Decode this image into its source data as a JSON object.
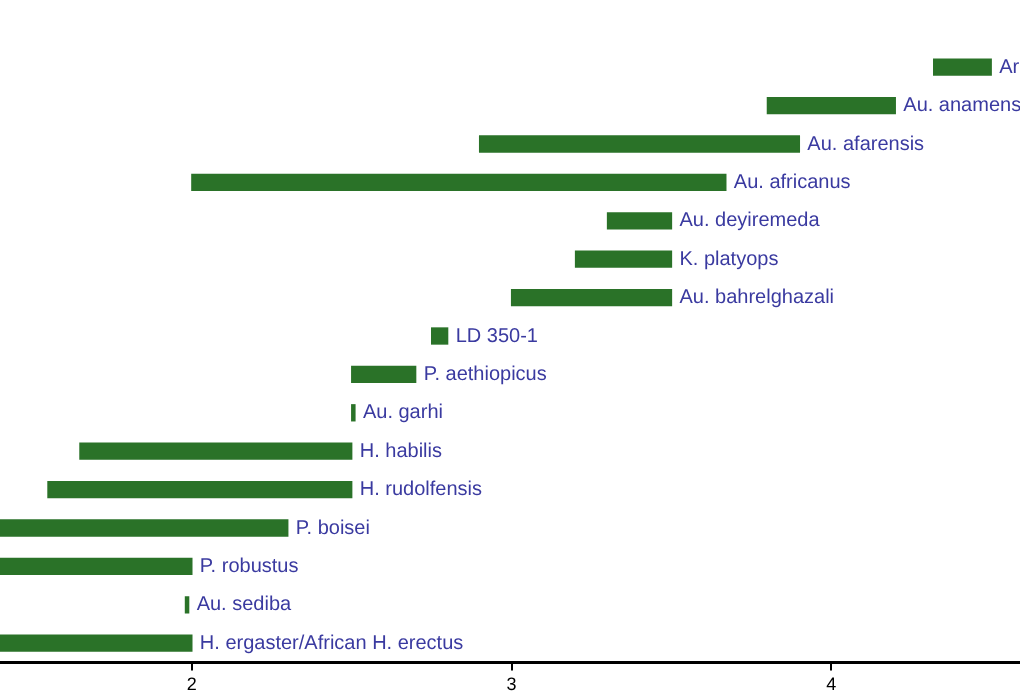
{
  "chart_data": {
    "type": "bar",
    "orientation": "horizontal",
    "tick_labels": "x",
    "grid": false,
    "legend": false,
    "categories": [
      null,
      null,
      null,
      null,
      null,
      null,
      null,
      null,
      null,
      null,
      null,
      null,
      null,
      null,
      null,
      null
    ],
    "annotations": [
      "Ar",
      "Au. anamens",
      "Au. afarensis",
      "Au. africanus",
      "Au. deyiremeda",
      "K. platyops",
      "Au. bahrelghazali",
      "LD 350-1",
      "P. aethiopicus",
      "Au. garhi",
      "H. habilis",
      "H. rudolfensis",
      "P. boisei",
      "P. robustus",
      "Au. sediba",
      "H. ergaster/African H. erectus"
    ],
    "base": [
      4.32,
      3.8,
      2.9,
      2.0,
      3.3,
      3.2,
      3.0,
      2.75,
      2.5,
      2.5,
      1.65,
      1.55,
      1.4,
      1.4,
      1.98,
      1.4
    ],
    "values": [
      0.18,
      0.4,
      1.0,
      1.67,
      0.2,
      0.3,
      0.5,
      0.05,
      0.2,
      0.01,
      0.85,
      0.95,
      0.9,
      0.6,
      0.01,
      0.6
    ],
    "color": "#2a7228",
    "xlim": [
      1.4,
      4.59
    ],
    "xticks": [
      2,
      3,
      4
    ]
  }
}
